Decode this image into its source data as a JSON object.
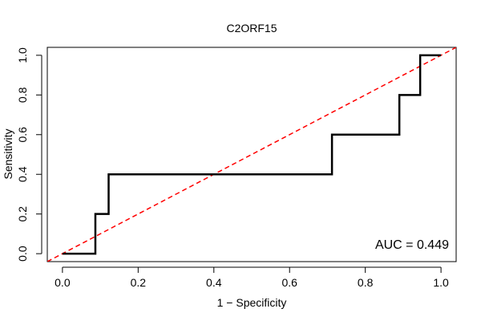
{
  "chart_data": {
    "type": "line",
    "title": "C2ORF15",
    "xlabel": "1 − Specificity",
    "ylabel": "Sensitivity",
    "xlim": [
      -0.04,
      1.04
    ],
    "ylim": [
      -0.04,
      1.04
    ],
    "x_ticks": [
      0.0,
      0.2,
      0.4,
      0.6,
      0.8,
      1.0
    ],
    "x_tick_labels": [
      "0.0",
      "0.2",
      "0.4",
      "0.6",
      "0.8",
      "1.0"
    ],
    "y_ticks": [
      0.0,
      0.2,
      0.4,
      0.6,
      0.8,
      1.0
    ],
    "y_tick_labels": [
      "0.0",
      "0.2",
      "0.4",
      "0.6",
      "0.8",
      "1.0"
    ],
    "grid": false,
    "series": [
      {
        "name": "ROC curve",
        "color": "#000000",
        "style": "solid",
        "x": [
          0.0,
          0.087,
          0.087,
          0.122,
          0.122,
          0.712,
          0.712,
          0.89,
          0.89,
          0.945,
          0.945,
          1.0
        ],
        "y": [
          0.0,
          0.0,
          0.2,
          0.2,
          0.4,
          0.4,
          0.6,
          0.6,
          0.8,
          0.8,
          1.0,
          1.0
        ]
      },
      {
        "name": "Chance line",
        "color": "#ff0000",
        "style": "dashed",
        "x": [
          -0.04,
          1.04
        ],
        "y": [
          -0.04,
          1.04
        ]
      }
    ],
    "annotations": [
      {
        "text": "AUC = 0.449"
      }
    ]
  }
}
